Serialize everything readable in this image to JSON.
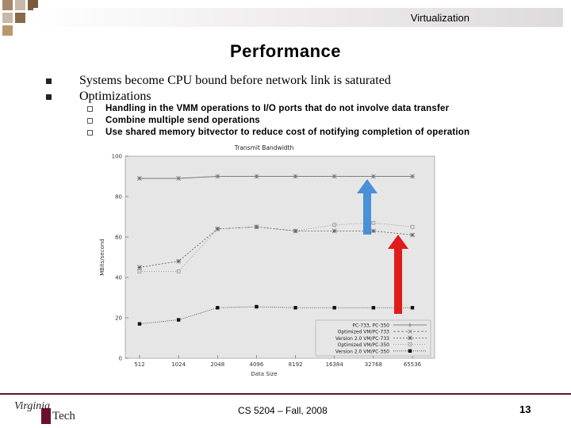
{
  "header": {
    "section": "Virtualization"
  },
  "slide": {
    "title": "Performance",
    "bullets": [
      "Systems become CPU bound before network link is saturated",
      "Optimizations"
    ],
    "sub_bullets": [
      "Handling in the VMM operations to I/O ports that do not involve data transfer",
      "Combine multiple send operations",
      "Use shared memory bitvector to reduce cost of notifying completion of operation"
    ]
  },
  "chart_data": {
    "type": "line",
    "title": "Transmit Bandwidth",
    "xlabel": "Data Size",
    "ylabel": "MBits/second",
    "ylim": [
      0,
      100
    ],
    "yticks": [
      "0",
      "20",
      "40",
      "60",
      "80",
      "100"
    ],
    "categories": [
      "512",
      "1024",
      "2048",
      "4096",
      "8192",
      "16384",
      "32768",
      "65536"
    ],
    "series": [
      {
        "name": "PC-733, PC-350",
        "values": [
          89,
          89,
          90,
          90,
          90,
          90,
          90,
          90
        ]
      },
      {
        "name": "Optimized VM/PC-733",
        "values": [
          89,
          89,
          90,
          90,
          90,
          90,
          90,
          90
        ]
      },
      {
        "name": "Version 2.0 VM/PC-733",
        "values": [
          45,
          48,
          64,
          65,
          63,
          63,
          63,
          61
        ]
      },
      {
        "name": "Optimized VM/PC-350",
        "values": [
          43,
          43,
          64,
          65,
          63,
          66,
          67,
          65
        ]
      },
      {
        "name": "Version 2.0 VM/PC-350",
        "values": [
          17,
          19,
          25,
          25.5,
          25,
          25,
          25,
          25
        ]
      }
    ]
  },
  "arrows": {
    "blue_color": "#4a90d9",
    "red_color": "#e01b1b"
  },
  "footer": {
    "course": "CS 5204 – Fall, 2008",
    "page": "13"
  },
  "logo": {
    "line1": "Virginia",
    "line2": "Tech"
  }
}
